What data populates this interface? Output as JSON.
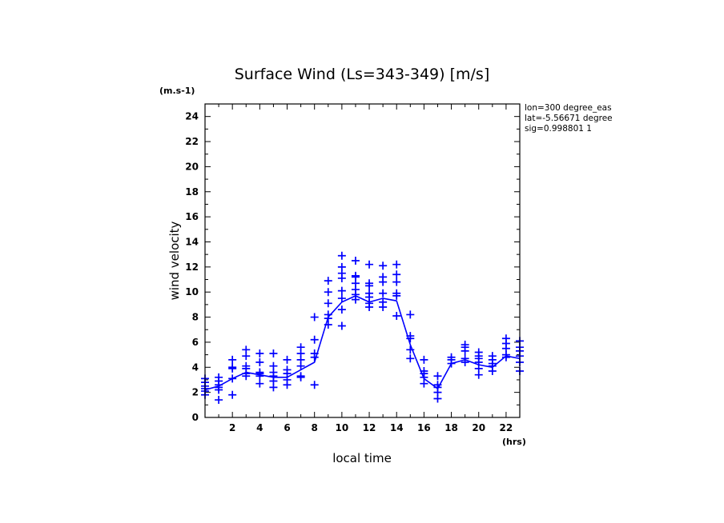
{
  "chart_data": {
    "type": "scatter",
    "title": "Surface Wind  (Ls=343-349) [m/s]",
    "ylabel": "wind velocity",
    "xlabel": "local time",
    "yunit": "(m.s-1)",
    "xunit": "(hrs)",
    "xlim": [
      0,
      23
    ],
    "ylim": [
      0,
      25
    ],
    "xticks": [
      2,
      4,
      6,
      8,
      10,
      12,
      14,
      16,
      18,
      20,
      22
    ],
    "yticks": [
      0,
      2,
      4,
      6,
      8,
      10,
      12,
      14,
      16,
      18,
      20,
      22,
      24
    ],
    "info_lines": [
      "lon=300 degree_eas",
      "lat=-5.56671 degree",
      "sig=0.998801 1"
    ],
    "color": "#0000ff",
    "mean_line": {
      "name": "mean",
      "x": [
        0,
        1,
        2,
        3,
        4,
        5,
        6,
        7,
        8,
        9,
        10,
        11,
        12,
        13,
        14,
        15,
        16,
        17,
        18,
        19,
        20,
        21,
        22,
        23
      ],
      "y": [
        2.2,
        2.5,
        3.1,
        3.6,
        3.4,
        3.2,
        3.2,
        3.8,
        4.4,
        8.0,
        9.2,
        9.7,
        9.2,
        9.5,
        9.3,
        5.8,
        3.1,
        2.3,
        4.3,
        4.6,
        4.2,
        4.0,
        4.9,
        4.7
      ]
    },
    "samples": [
      {
        "x": 0,
        "values": [
          1.8,
          2.1,
          2.3,
          2.5,
          2.8,
          3.1
        ]
      },
      {
        "x": 1,
        "values": [
          1.4,
          2.2,
          2.4,
          2.6,
          2.9,
          3.2
        ]
      },
      {
        "x": 2,
        "values": [
          1.8,
          3.1,
          3.9,
          4.0,
          4.6
        ]
      },
      {
        "x": 3,
        "values": [
          3.3,
          3.5,
          3.9,
          4.1,
          4.9,
          5.4
        ]
      },
      {
        "x": 4,
        "values": [
          2.7,
          3.3,
          3.5,
          3.6,
          4.4,
          5.1
        ]
      },
      {
        "x": 5,
        "values": [
          2.4,
          2.9,
          3.3,
          3.6,
          4.1,
          5.1
        ]
      },
      {
        "x": 6,
        "values": [
          2.6,
          3.0,
          3.5,
          3.8,
          4.6
        ]
      },
      {
        "x": 7,
        "values": [
          3.2,
          3.3,
          4.1,
          4.6,
          5.1,
          5.6
        ]
      },
      {
        "x": 8,
        "values": [
          2.6,
          4.8,
          5.1,
          6.2,
          8.0
        ]
      },
      {
        "x": 9,
        "values": [
          7.4,
          7.9,
          8.2,
          9.1,
          10.0,
          10.9
        ]
      },
      {
        "x": 10,
        "values": [
          7.3,
          8.6,
          9.5,
          10.1,
          11.1,
          11.5,
          12.0,
          12.9
        ]
      },
      {
        "x": 11,
        "values": [
          9.4,
          9.8,
          10.2,
          10.7,
          11.2,
          11.3,
          12.5
        ]
      },
      {
        "x": 12,
        "values": [
          8.8,
          9.1,
          9.6,
          9.9,
          10.5,
          10.7,
          12.2
        ]
      },
      {
        "x": 13,
        "values": [
          8.8,
          9.2,
          9.9,
          10.8,
          11.2,
          12.1
        ]
      },
      {
        "x": 14,
        "values": [
          8.1,
          9.7,
          9.9,
          10.8,
          11.4,
          12.2
        ]
      },
      {
        "x": 15,
        "values": [
          4.7,
          5.4,
          6.3,
          6.5,
          8.2
        ]
      },
      {
        "x": 16,
        "values": [
          2.7,
          3.2,
          3.5,
          3.7,
          4.6
        ]
      },
      {
        "x": 17,
        "values": [
          1.5,
          2.0,
          2.4,
          2.6,
          3.3
        ]
      },
      {
        "x": 18,
        "values": [
          4.3,
          4.6,
          4.8
        ]
      },
      {
        "x": 19,
        "values": [
          4.4,
          4.7,
          5.3,
          5.6,
          5.8
        ]
      },
      {
        "x": 20,
        "values": [
          3.4,
          3.9,
          4.4,
          4.7,
          4.9,
          5.2
        ]
      },
      {
        "x": 21,
        "values": [
          3.7,
          4.1,
          4.3,
          4.6,
          4.9
        ]
      },
      {
        "x": 22,
        "values": [
          4.8,
          5.0,
          5.5,
          5.9,
          6.3
        ]
      },
      {
        "x": 23,
        "values": [
          3.7,
          4.4,
          4.9,
          5.3,
          5.6,
          6.1
        ]
      }
    ]
  }
}
